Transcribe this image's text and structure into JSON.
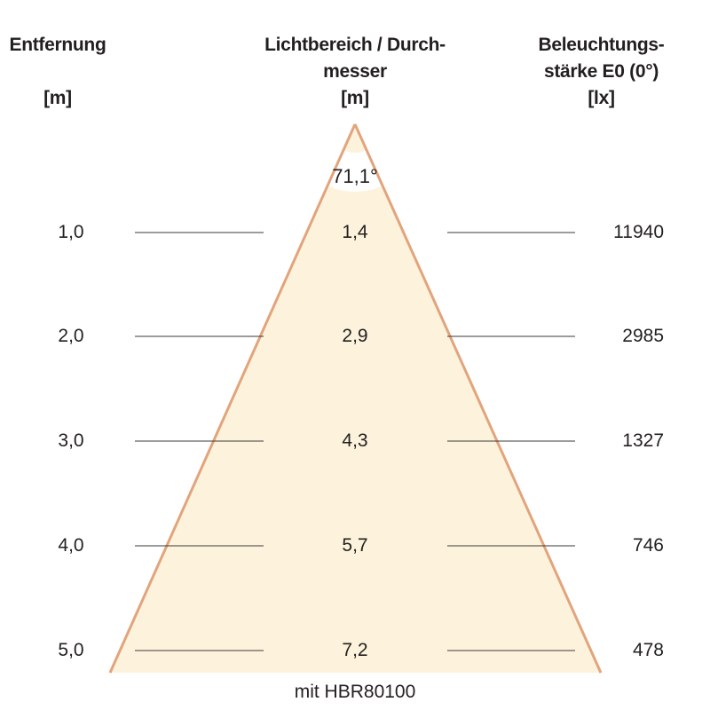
{
  "headers": {
    "distance": {
      "line1": "Entfernung",
      "unit": "[m]"
    },
    "diameter": {
      "line1": "Lichtbereich / Durch-",
      "line2": "messer",
      "unit": "[m]"
    },
    "illuminance": {
      "line1": "Beleuchtungs-",
      "line2": "stärke E0 (0°)",
      "unit": "[lx]"
    }
  },
  "beam_angle": "71,1°",
  "rows": [
    {
      "distance": "1,0",
      "diameter": "1,4",
      "illuminance": "11940"
    },
    {
      "distance": "2,0",
      "diameter": "2,9",
      "illuminance": "2985"
    },
    {
      "distance": "3,0",
      "diameter": "4,3",
      "illuminance": "1327"
    },
    {
      "distance": "4,0",
      "diameter": "5,7",
      "illuminance": "746"
    },
    {
      "distance": "5,0",
      "diameter": "7,2",
      "illuminance": "478"
    }
  ],
  "caption": "mit HBR80100",
  "colors": {
    "cone_fill": "#fdf3dc",
    "cone_edge": "#e2a47c",
    "rule": "#3a3a3a"
  }
}
